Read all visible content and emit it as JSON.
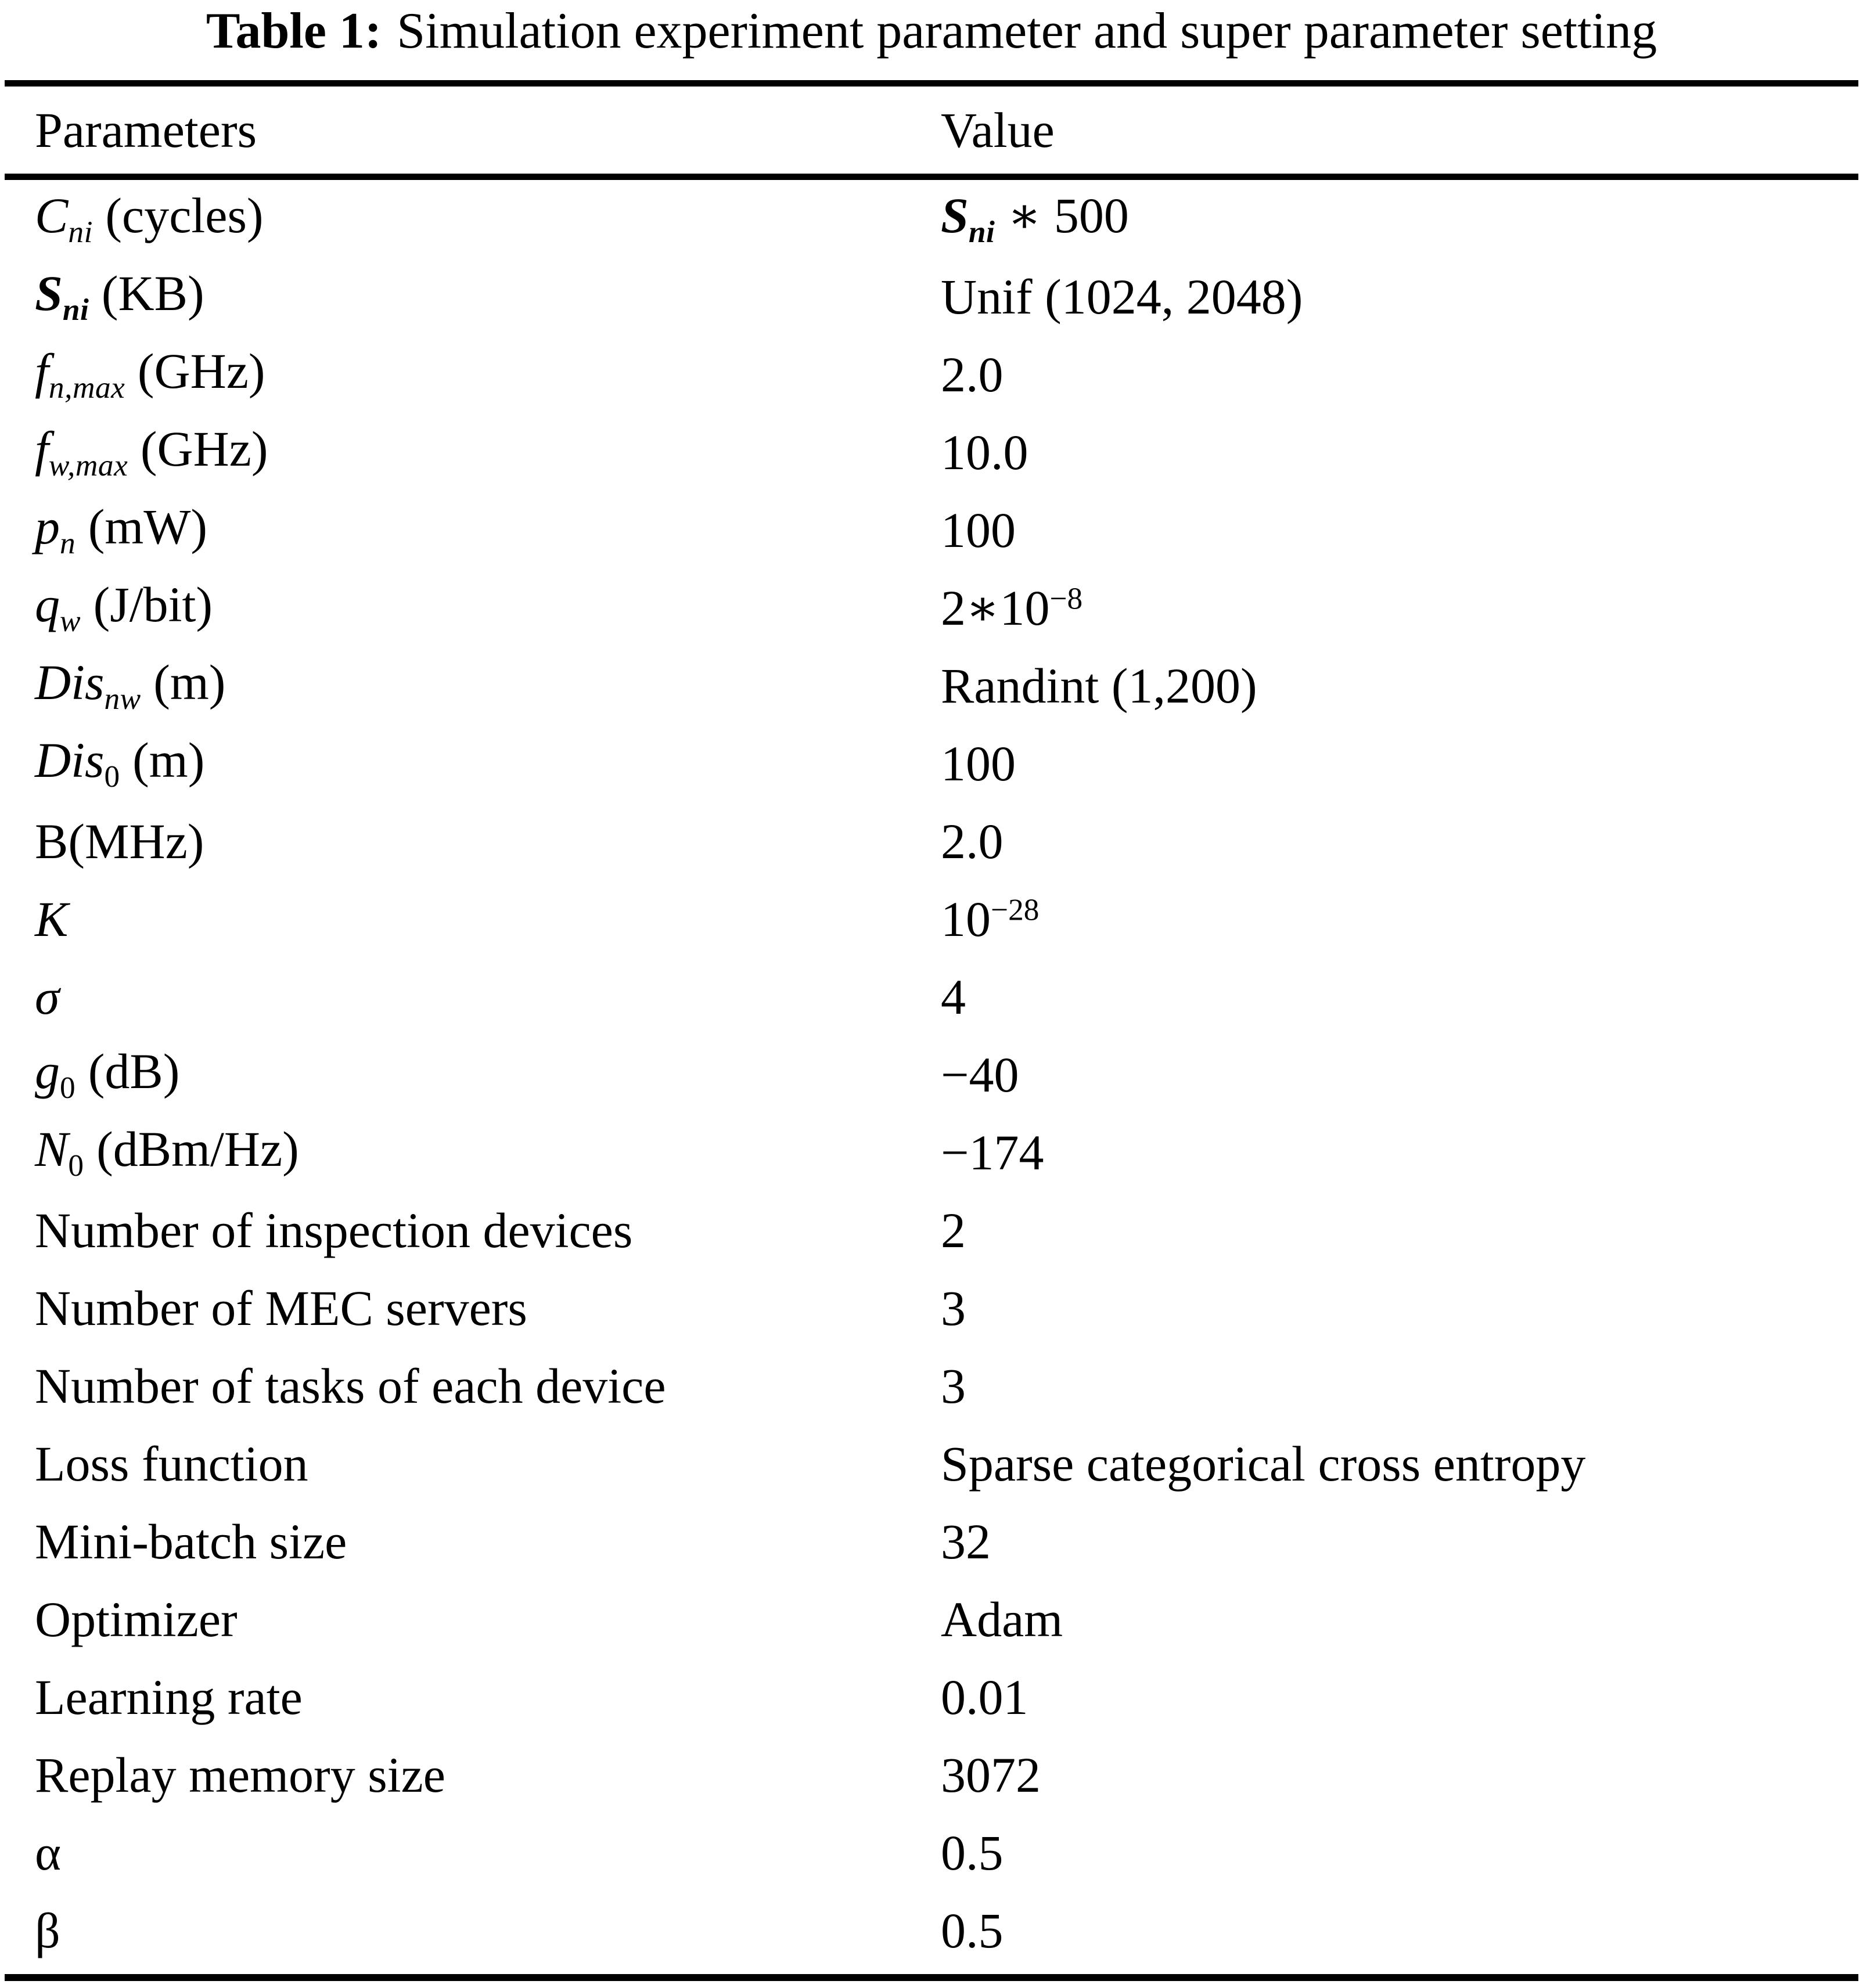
{
  "title": {
    "label": "Table 1:",
    "text": "Simulation experiment parameter and super parameter setting"
  },
  "header": {
    "param": "Parameters",
    "value": "Value"
  },
  "rows": [
    {
      "param": [
        {
          "t": "C",
          "i": true
        },
        {
          "t": "ni",
          "i": true,
          "v": "sub"
        },
        {
          "t": " (cycles)"
        }
      ],
      "value": [
        {
          "t": "S",
          "i": true,
          "b": true
        },
        {
          "t": "ni",
          "i": true,
          "b": true,
          "v": "sub"
        },
        {
          "t": " ∗ 500"
        }
      ]
    },
    {
      "param": [
        {
          "t": "S",
          "i": true,
          "b": true
        },
        {
          "t": "ni",
          "i": true,
          "b": true,
          "v": "sub"
        },
        {
          "t": " (KB)"
        }
      ],
      "value": [
        {
          "t": "Unif (1024, 2048)"
        }
      ]
    },
    {
      "param": [
        {
          "t": "f",
          "i": true
        },
        {
          "t": "n,max",
          "i": true,
          "v": "sub"
        },
        {
          "t": " (GHz)"
        }
      ],
      "value": [
        {
          "t": "2.0"
        }
      ]
    },
    {
      "param": [
        {
          "t": "f",
          "i": true
        },
        {
          "t": "w,max",
          "i": true,
          "v": "sub"
        },
        {
          "t": " (GHz)"
        }
      ],
      "value": [
        {
          "t": "10.0"
        }
      ]
    },
    {
      "param": [
        {
          "t": "p",
          "i": true
        },
        {
          "t": "n",
          "i": true,
          "v": "sub"
        },
        {
          "t": " (mW)"
        }
      ],
      "value": [
        {
          "t": "100"
        }
      ]
    },
    {
      "param": [
        {
          "t": "q",
          "i": true
        },
        {
          "t": "w",
          "i": true,
          "v": "sub"
        },
        {
          "t": " (J/bit)"
        }
      ],
      "value": [
        {
          "t": "2∗10"
        },
        {
          "t": "−8",
          "v": "sup"
        }
      ]
    },
    {
      "param": [
        {
          "t": "Dis",
          "i": true
        },
        {
          "t": "nw",
          "i": true,
          "v": "sub"
        },
        {
          "t": " (m)"
        }
      ],
      "value": [
        {
          "t": "Randint (1,200)"
        }
      ]
    },
    {
      "param": [
        {
          "t": "Dis",
          "i": true
        },
        {
          "t": "0",
          "v": "sub"
        },
        {
          "t": " (m)"
        }
      ],
      "value": [
        {
          "t": "100"
        }
      ]
    },
    {
      "param": [
        {
          "t": "B(MHz)"
        }
      ],
      "value": [
        {
          "t": "2.0"
        }
      ]
    },
    {
      "param": [
        {
          "t": "K",
          "i": true
        }
      ],
      "value": [
        {
          "t": "10"
        },
        {
          "t": "−28",
          "v": "sup"
        }
      ]
    },
    {
      "param": [
        {
          "t": "σ",
          "i": true
        }
      ],
      "value": [
        {
          "t": "4"
        }
      ]
    },
    {
      "param": [
        {
          "t": "g",
          "i": true
        },
        {
          "t": "0",
          "v": "sub"
        },
        {
          "t": " (dB)"
        }
      ],
      "value": [
        {
          "t": "−40"
        }
      ]
    },
    {
      "param": [
        {
          "t": "N",
          "i": true
        },
        {
          "t": "0",
          "v": "sub"
        },
        {
          "t": " (dBm/Hz)"
        }
      ],
      "value": [
        {
          "t": "−174"
        }
      ]
    },
    {
      "param": [
        {
          "t": "Number of inspection devices"
        }
      ],
      "value": [
        {
          "t": "2"
        }
      ]
    },
    {
      "param": [
        {
          "t": "Number of MEC servers"
        }
      ],
      "value": [
        {
          "t": "3"
        }
      ]
    },
    {
      "param": [
        {
          "t": "Number of tasks of each device"
        }
      ],
      "value": [
        {
          "t": "3"
        }
      ]
    },
    {
      "param": [
        {
          "t": "Loss function"
        }
      ],
      "value": [
        {
          "t": "Sparse categorical cross entropy"
        }
      ]
    },
    {
      "param": [
        {
          "t": "Mini-batch size"
        }
      ],
      "value": [
        {
          "t": "32"
        }
      ]
    },
    {
      "param": [
        {
          "t": "Optimizer"
        }
      ],
      "value": [
        {
          "t": "Adam"
        }
      ]
    },
    {
      "param": [
        {
          "t": "Learning rate"
        }
      ],
      "value": [
        {
          "t": "0.01"
        }
      ]
    },
    {
      "param": [
        {
          "t": "Replay memory size"
        }
      ],
      "value": [
        {
          "t": "3072"
        }
      ]
    },
    {
      "param": [
        {
          "t": "α"
        }
      ],
      "value": [
        {
          "t": "0.5"
        }
      ]
    },
    {
      "param": [
        {
          "t": "β"
        }
      ],
      "value": [
        {
          "t": "0.5"
        }
      ]
    }
  ]
}
